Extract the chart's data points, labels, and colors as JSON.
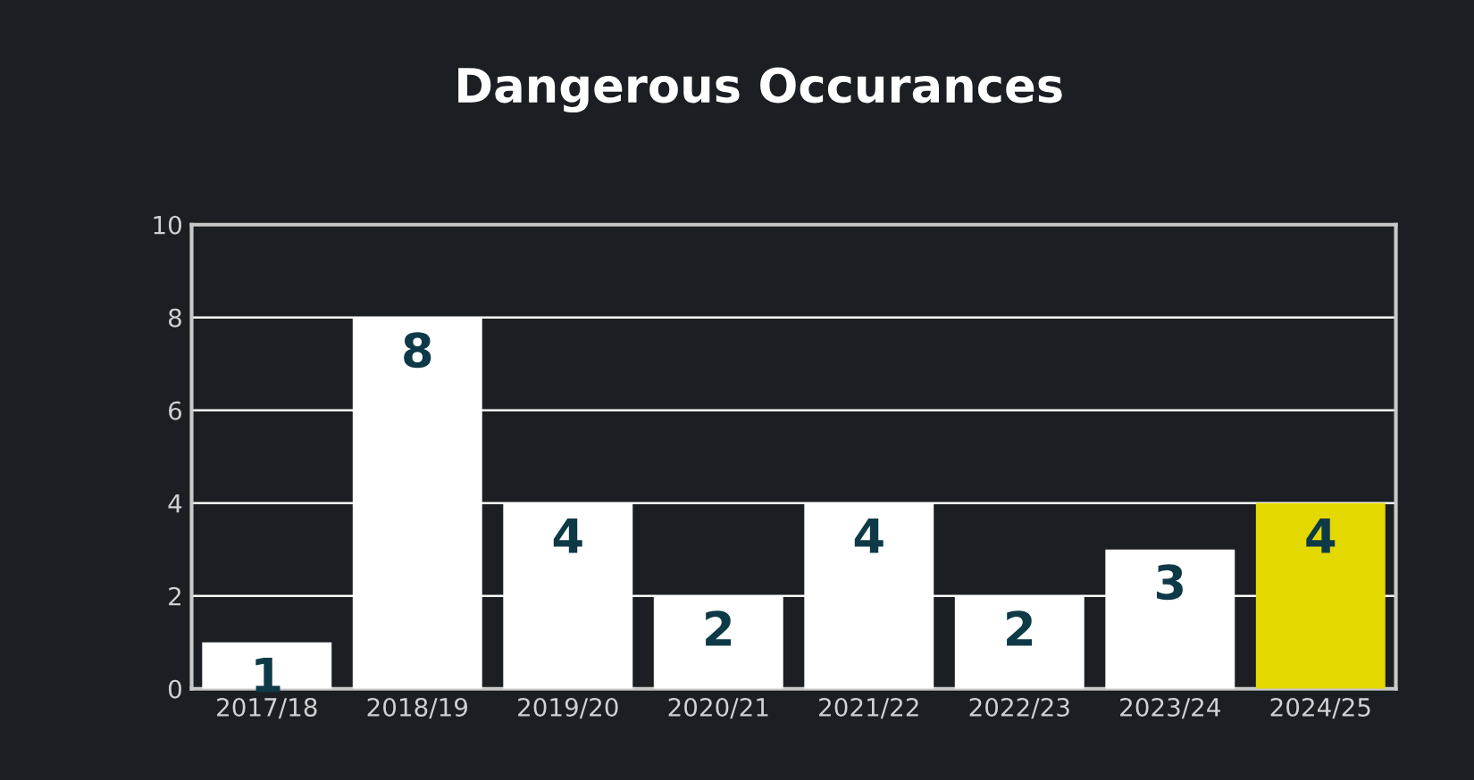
{
  "chart_data": {
    "type": "bar",
    "title": "Dangerous Occurances",
    "categories": [
      "2017/18",
      "2018/19",
      "2019/20",
      "2020/21",
      "2021/22",
      "2022/23",
      "2023/24",
      "2024/25"
    ],
    "values": [
      1,
      8,
      4,
      2,
      4,
      2,
      3,
      4
    ],
    "colors": [
      "#ffffff",
      "#ffffff",
      "#ffffff",
      "#ffffff",
      "#ffffff",
      "#ffffff",
      "#ffffff",
      "#e3d800"
    ],
    "ylim": [
      0,
      10
    ],
    "yticks": [
      0,
      2,
      4,
      6,
      8,
      10
    ],
    "grid": "y",
    "data_labels": true
  }
}
